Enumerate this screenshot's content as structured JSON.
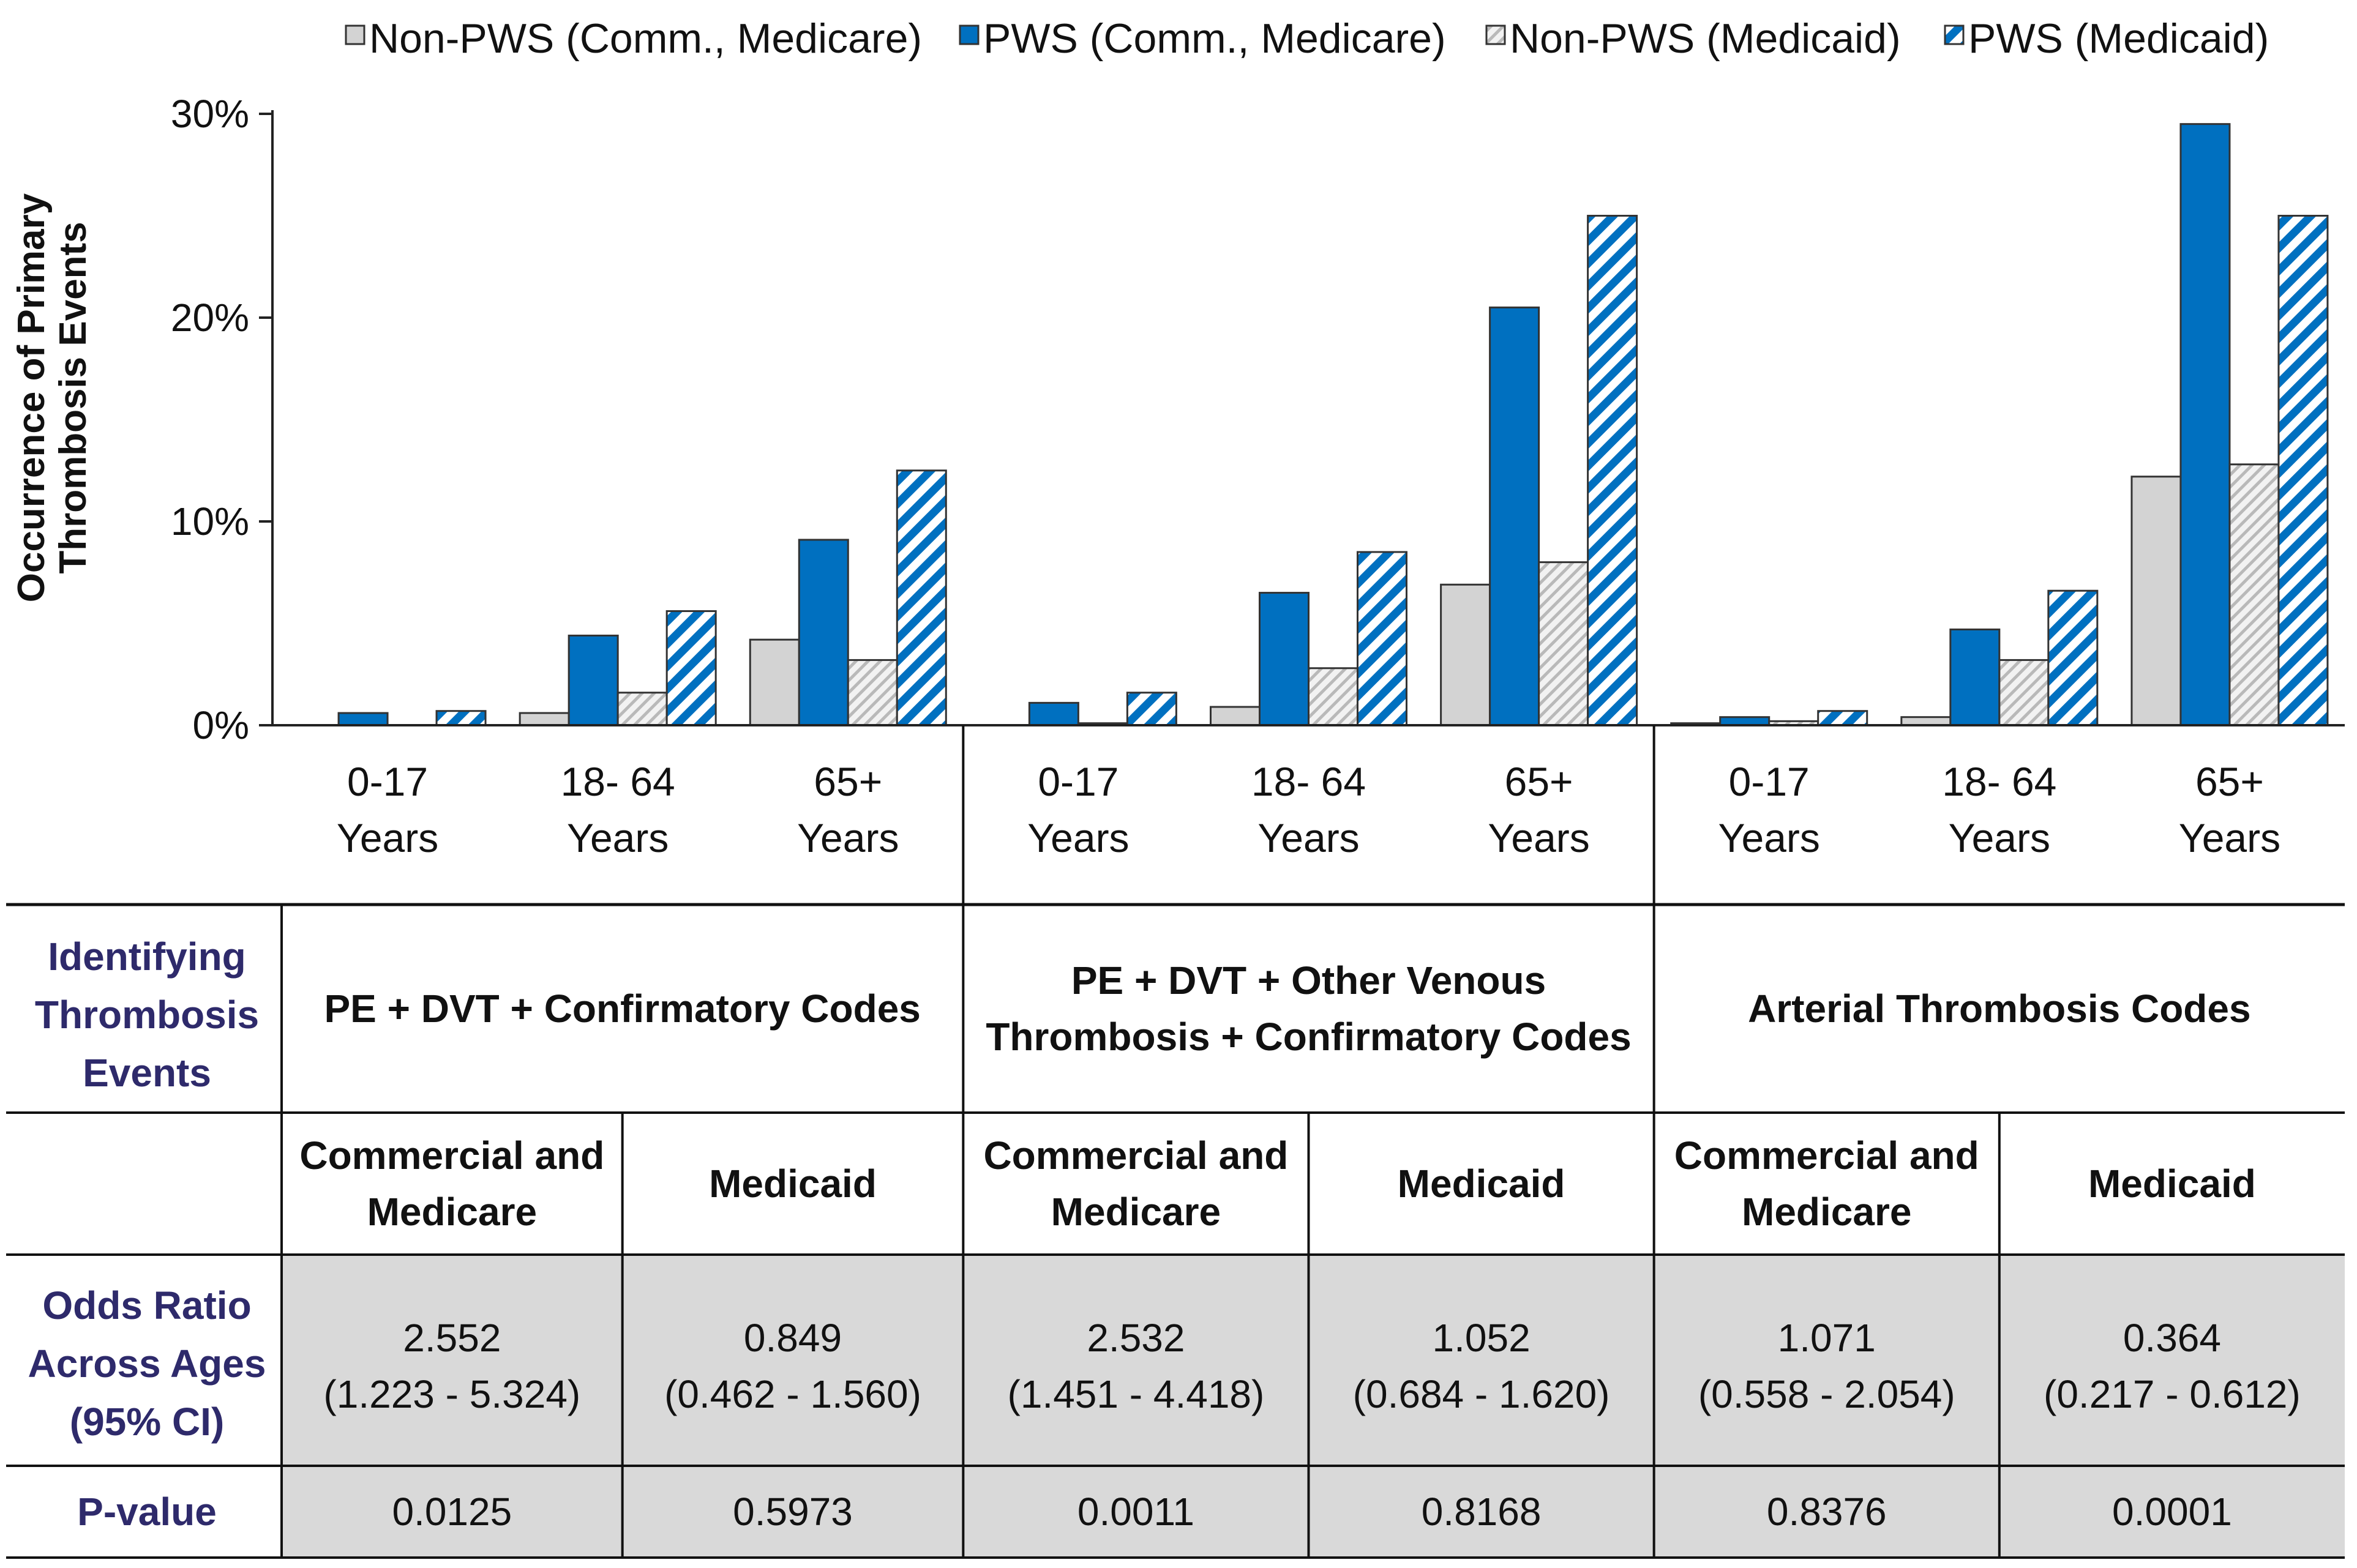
{
  "chart_data": {
    "type": "bar",
    "ylabel": "Occurrence of Primary Thrombosis Events",
    "ylim": [
      0,
      30
    ],
    "yticks": [
      "0%",
      "10%",
      "20%",
      "30%"
    ],
    "legend": [
      {
        "name": "Non-PWS (Comm., Medicare)",
        "fill": "#d3d3d3",
        "pattern": "solid"
      },
      {
        "name": "PWS (Comm., Medicare)",
        "fill": "#0070c0",
        "pattern": "solid"
      },
      {
        "name": "Non-PWS (Medicaid)",
        "fill": "#e6e6e6",
        "pattern": "hatch-gray"
      },
      {
        "name": "PWS (Medicaid)",
        "fill": "#0070c0",
        "pattern": "hatch-blue"
      }
    ],
    "groups": [
      {
        "name": "PE + DVT + Confirmatory Codes",
        "categories": [
          {
            "line1": "0-17",
            "line2": "Years",
            "values": [
              0.0,
              0.6,
              0.0,
              0.7
            ]
          },
          {
            "line1": "18- 64",
            "line2": "Years",
            "values": [
              0.6,
              4.4,
              1.6,
              5.6
            ]
          },
          {
            "line1": "65+",
            "line2": "Years",
            "values": [
              4.2,
              9.1,
              3.2,
              12.5
            ]
          }
        ]
      },
      {
        "name": "PE + DVT + Other Venous Thrombosis + Confirmatory Codes",
        "categories": [
          {
            "line1": "0-17",
            "line2": "Years",
            "values": [
              0.0,
              1.1,
              0.1,
              1.6
            ]
          },
          {
            "line1": "18- 64",
            "line2": "Years",
            "values": [
              0.9,
              6.5,
              2.8,
              8.5
            ]
          },
          {
            "line1": "65+",
            "line2": "Years",
            "values": [
              6.9,
              20.5,
              8.0,
              25.0
            ]
          }
        ]
      },
      {
        "name": "Arterial Thrombosis Codes",
        "categories": [
          {
            "line1": "0-17",
            "line2": "Years",
            "values": [
              0.1,
              0.4,
              0.2,
              0.7
            ]
          },
          {
            "line1": "18- 64",
            "line2": "Years",
            "values": [
              0.4,
              4.7,
              3.2,
              6.6
            ]
          },
          {
            "line1": "65+",
            "line2": "Years",
            "values": [
              12.2,
              29.5,
              12.8,
              25.0
            ]
          }
        ]
      }
    ]
  },
  "table": {
    "row_label_identifying": [
      "Identifying",
      "Thrombosis",
      "Events"
    ],
    "code_headers": [
      [
        "PE + DVT + Confirmatory Codes"
      ],
      [
        "PE + DVT + Other Venous",
        "Thrombosis + Confirmatory Codes"
      ],
      [
        "Arterial Thrombosis Codes"
      ]
    ],
    "payer_headers": [
      [
        "Commercial and",
        "Medicare"
      ],
      [
        "Medicaid"
      ],
      [
        "Commercial and",
        "Medicare"
      ],
      [
        "Medicaid"
      ],
      [
        "Commercial and",
        "Medicare"
      ],
      [
        "Medicaid"
      ]
    ],
    "row_label_odds": [
      "Odds Ratio",
      "Across Ages",
      "(95% CI)"
    ],
    "odds_ratios": [
      [
        "2.552",
        "(1.223 - 5.324)"
      ],
      [
        "0.849",
        "(0.462 - 1.560)"
      ],
      [
        "2.532",
        "(1.451 - 4.418)"
      ],
      [
        "1.052",
        "(0.684 - 1.620)"
      ],
      [
        "1.071",
        "(0.558 - 2.054)"
      ],
      [
        "0.364",
        "(0.217 - 0.612)"
      ]
    ],
    "row_label_pvalue": "P-value",
    "p_values": [
      "0.0125",
      "0.5973",
      "0.0011",
      "0.8168",
      "0.8376",
      "0.0001"
    ]
  }
}
